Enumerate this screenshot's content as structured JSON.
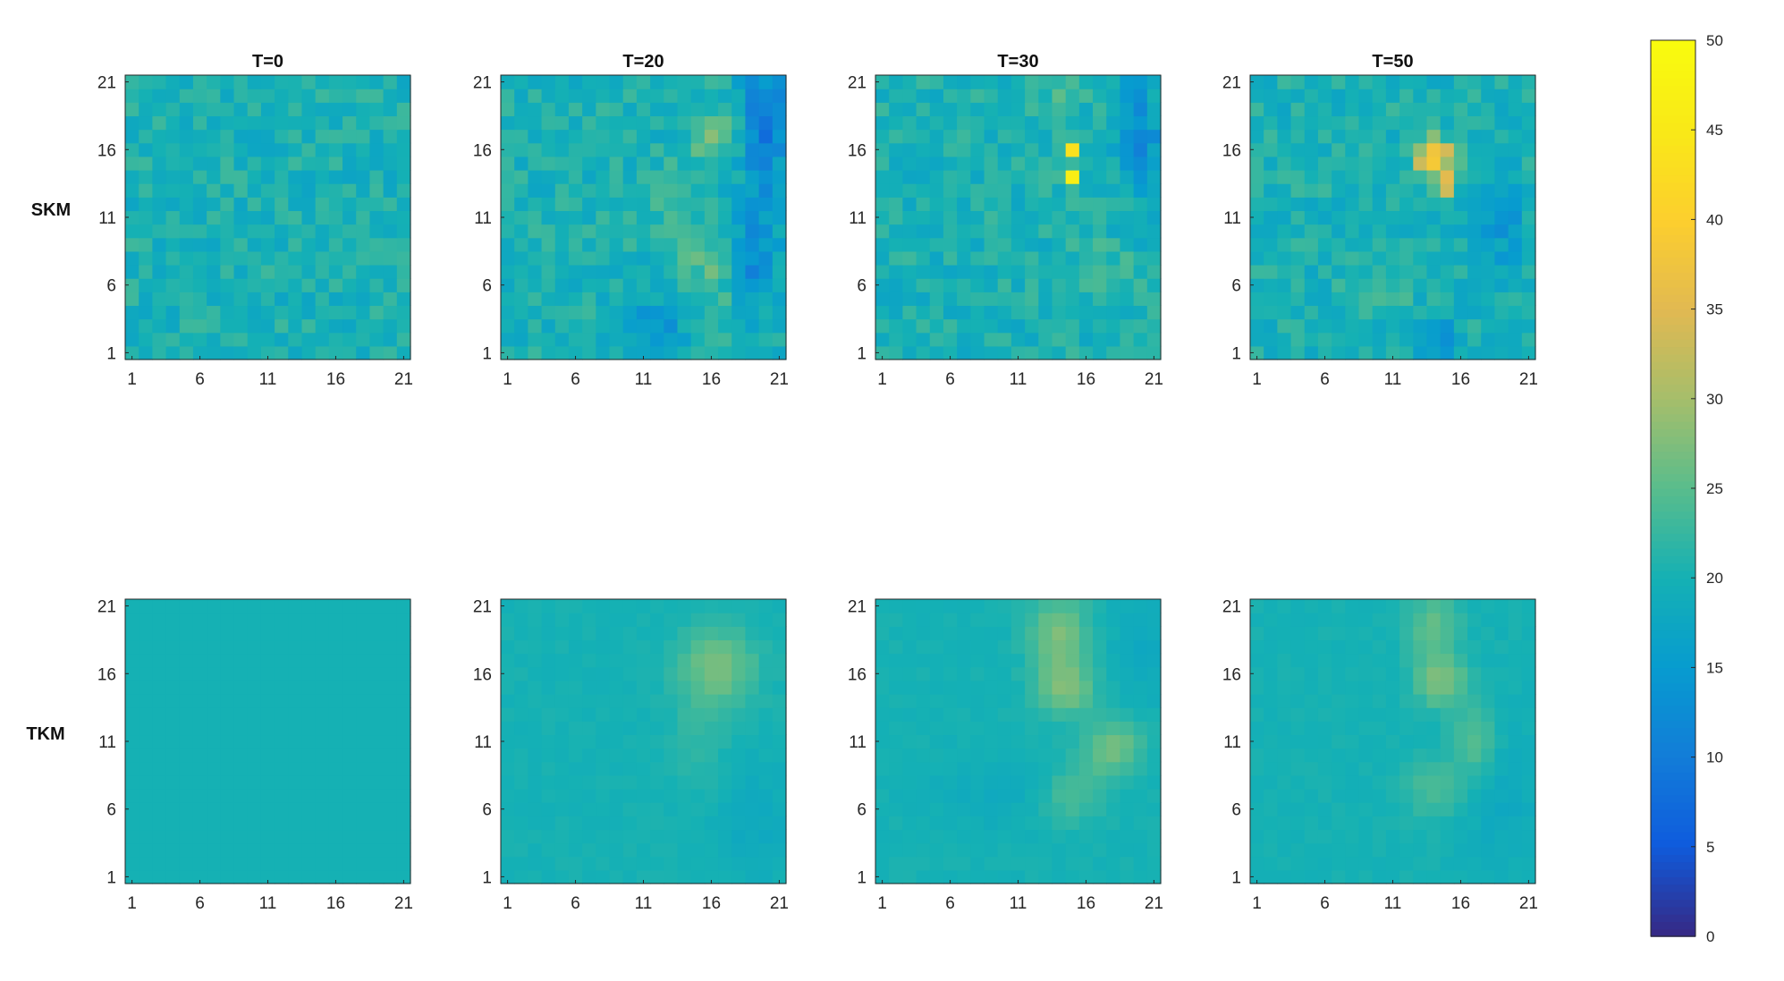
{
  "chart_data": {
    "type": "heatmap",
    "grid_size": 21,
    "grid": false,
    "legend": "right",
    "colormap": "parula",
    "clim": [
      0,
      50
    ],
    "colorbar_ticks": [
      0,
      5,
      10,
      15,
      20,
      25,
      30,
      35,
      40,
      45,
      50
    ],
    "columns": [
      "T=0",
      "T=20",
      "T=30",
      "T=50"
    ],
    "rows": [
      "SKM",
      "TKM"
    ],
    "x_ticks": [
      1,
      6,
      11,
      16,
      21
    ],
    "y_ticks": [
      1,
      6,
      11,
      16,
      21
    ],
    "baseline_value": 20,
    "panels": [
      {
        "row": "SKM",
        "title": "T=0",
        "noise_amplitude": 3,
        "spots": []
      },
      {
        "row": "SKM",
        "title": "T=20",
        "noise_amplitude": 3,
        "spots": [
          {
            "x": 20,
            "y": 18,
            "sx": 1.2,
            "sy": 4,
            "v": -10
          },
          {
            "x": 19,
            "y": 8,
            "sx": 1.2,
            "sy": 3,
            "v": -8
          },
          {
            "x": 16,
            "y": 7,
            "sx": 1.5,
            "sy": 2.5,
            "v": 5
          },
          {
            "x": 16,
            "y": 17,
            "sx": 1.2,
            "sy": 1.5,
            "v": 6
          },
          {
            "x": 12,
            "y": 2,
            "sx": 1.5,
            "sy": 2.5,
            "v": -6
          },
          {
            "x": 13,
            "y": 12,
            "sx": 1.5,
            "sy": 2,
            "v": 3
          }
        ]
      },
      {
        "row": "SKM",
        "title": "T=30",
        "noise_amplitude": 3,
        "spots": [
          {
            "x": 15,
            "y": 16,
            "sx": 0.4,
            "sy": 0.4,
            "v": 24
          },
          {
            "x": 15,
            "y": 14,
            "sx": 0.4,
            "sy": 0.4,
            "v": 24
          },
          {
            "x": 20,
            "y": 17,
            "sx": 1.2,
            "sy": 3,
            "v": -7
          },
          {
            "x": 17,
            "y": 7,
            "sx": 1.5,
            "sy": 1.5,
            "v": 4
          },
          {
            "x": 14,
            "y": 20,
            "sx": 1.2,
            "sy": 1.2,
            "v": 4
          }
        ]
      },
      {
        "row": "SKM",
        "title": "T=50",
        "noise_amplitude": 3,
        "spots": [
          {
            "x": 14,
            "y": 15.5,
            "sx": 0.9,
            "sy": 0.9,
            "v": 24
          },
          {
            "x": 15,
            "y": 13.5,
            "sx": 0.5,
            "sy": 0.6,
            "v": 20
          },
          {
            "x": 19,
            "y": 11,
            "sx": 1.2,
            "sy": 2.5,
            "v": -6
          },
          {
            "x": 14,
            "y": 2,
            "sx": 1.2,
            "sy": 1.5,
            "v": -6
          },
          {
            "x": 11,
            "y": 7,
            "sx": 2,
            "sy": 1.5,
            "v": 3
          }
        ]
      },
      {
        "row": "TKM",
        "title": "T=0",
        "noise_amplitude": 0,
        "spots": []
      },
      {
        "row": "TKM",
        "title": "T=20",
        "noise_amplitude": 0.6,
        "spots": [
          {
            "x": 16.5,
            "y": 16.5,
            "sx": 2,
            "sy": 2,
            "v": 7
          },
          {
            "x": 15,
            "y": 11,
            "sx": 1.5,
            "sy": 3,
            "v": 2
          },
          {
            "x": 19,
            "y": 5,
            "sx": 2,
            "sy": 3,
            "v": -2
          }
        ]
      },
      {
        "row": "TKM",
        "title": "T=30",
        "noise_amplitude": 0.6,
        "spots": [
          {
            "x": 14,
            "y": 19,
            "sx": 1.5,
            "sy": 2,
            "v": 7
          },
          {
            "x": 14.5,
            "y": 15,
            "sx": 1.5,
            "sy": 1.5,
            "v": 7
          },
          {
            "x": 18,
            "y": 10.5,
            "sx": 1.5,
            "sy": 1.5,
            "v": 7
          },
          {
            "x": 15,
            "y": 7,
            "sx": 1.5,
            "sy": 1.5,
            "v": 4
          },
          {
            "x": 20,
            "y": 18,
            "sx": 1.5,
            "sy": 3,
            "v": -2
          },
          {
            "x": 9,
            "y": 7,
            "sx": 3,
            "sy": 2,
            "v": -1.5
          }
        ]
      },
      {
        "row": "TKM",
        "title": "T=50",
        "noise_amplitude": 0.6,
        "spots": [
          {
            "x": 14,
            "y": 19.5,
            "sx": 1.3,
            "sy": 1.5,
            "v": 6
          },
          {
            "x": 14.5,
            "y": 15.5,
            "sx": 1.3,
            "sy": 1.3,
            "v": 8
          },
          {
            "x": 17,
            "y": 11,
            "sx": 1.2,
            "sy": 2,
            "v": 5
          },
          {
            "x": 14,
            "y": 7.5,
            "sx": 1.5,
            "sy": 1.5,
            "v": 4
          },
          {
            "x": 19,
            "y": 7,
            "sx": 2,
            "sy": 4,
            "v": -2
          }
        ]
      }
    ]
  }
}
